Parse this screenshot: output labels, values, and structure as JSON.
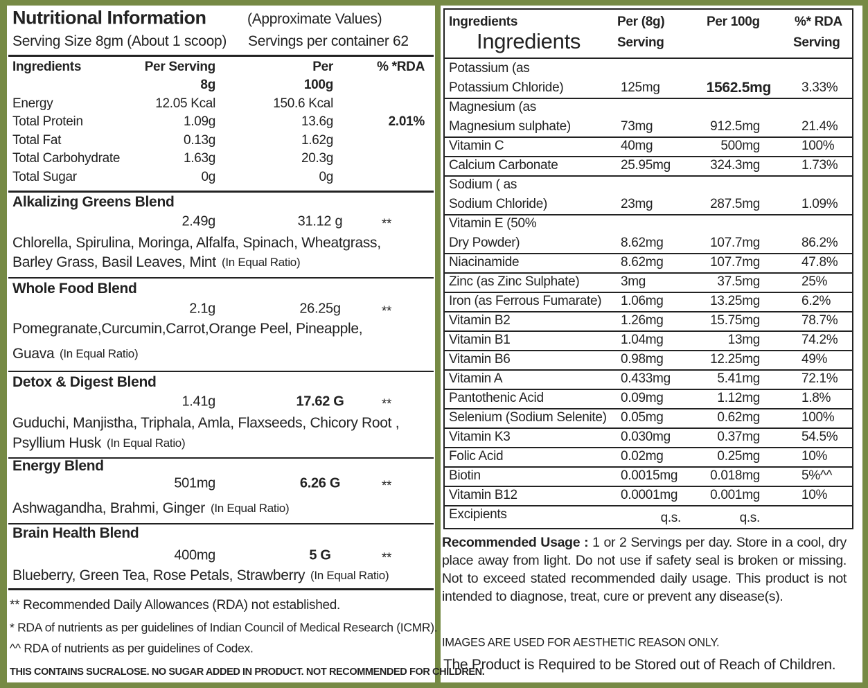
{
  "left": {
    "title": "Nutritional Information",
    "title_note": "(Approximate Values)",
    "serving_size": "Serving Size 8gm (About 1 scoop)",
    "servings_per_container": "Servings per container 62",
    "header": {
      "ingredients": "Ingredients",
      "per_serving": [
        "Per Serving",
        "8g"
      ],
      "per_100g": [
        "Per",
        "100g"
      ],
      "rda": "% *RDA"
    },
    "nutrients": [
      [
        "Energy",
        "12.05 Kcal",
        "150.6 Kcal",
        null
      ],
      [
        "Total Protein",
        "1.09g",
        "13.6g",
        "2.01%"
      ],
      [
        "Total Fat",
        "0.13g",
        "1.62g",
        null
      ],
      [
        "Total Carbohydrate",
        "1.63g",
        "20.3g",
        null
      ],
      [
        "Total Sugar",
        "0g",
        "0g",
        null
      ]
    ],
    "blends": [
      {
        "name": "Alkalizing Greens Blend",
        "per_serving": "2.49g",
        "per_100g": "31.12 g",
        "rda": "**",
        "lines": [
          "Chlorella, Spirulina, Moringa, Alfalfa, Spinach, Wheatgrass,",
          "Barley  Grass, Basil Leaves, Mint"
        ],
        "note": "(In Equal Ratio)"
      },
      {
        "name": "Whole Food Blend",
        "per_serving": "2.1g",
        "per_100g": "26.25g",
        "rda": "**",
        "lines": [
          "Pomegranate,Curcumin,Carrot,Orange Peel, Pineapple,",
          "Guava"
        ],
        "note": "(In Equal Ratio)"
      },
      {
        "name": "Detox & Digest Blend",
        "per_serving": "1.41g",
        "per_100g": "17.62 G",
        "rda": "**",
        "lines": [
          "Guduchi, Manjistha, Triphala, Amla, Flaxseeds, Chicory Root ,",
          "Psyllium Husk"
        ],
        "note": "(In Equal Ratio)"
      },
      {
        "name": "Energy Blend",
        "per_serving": "501mg",
        "per_100g": "6.26 G",
        "rda": "**",
        "lines": [
          "Ashwagandha, Brahmi, Ginger"
        ],
        "note": "(In Equal Ratio)"
      },
      {
        "name": "Brain Health Blend",
        "per_serving": "400mg",
        "per_100g": "5 G",
        "rda": "**",
        "lines": [
          "Blueberry, Green Tea, Rose Petals, Strawberry"
        ],
        "note": "(In Equal Ratio)"
      }
    ],
    "footnotes": [
      "** Recommended Daily Allowances (RDA) not established.",
      "* RDA of nutrients as per guidelines of Indian Council of Medical Research (ICMR).",
      "^^ RDA of nutrients as per guidelines of Codex."
    ],
    "warning": "THIS CONTAINS SUCRALOSE. NO SUGAR ADDED IN PRODUCT. NOT RECOMMENDED FOR CHILDREN."
  },
  "right": {
    "header": {
      "ingredients": "Ingredients",
      "ingredients_large": "Ingredients",
      "per_serving": [
        "Per (8g)",
        "Serving"
      ],
      "per_100g": "Per 100g",
      "rda": [
        "%* RDA",
        "Serving"
      ]
    },
    "rows": [
      [
        [
          "Potassium (as",
          "Potassium Chloride)"
        ],
        "125mg",
        "1562.5mg",
        "3.33%"
      ],
      [
        [
          "Magnesium (as",
          "Magnesium sulphate)"
        ],
        "73mg",
        "912.5mg",
        "21.4%"
      ],
      [
        [
          "Vitamin C"
        ],
        "40mg",
        "500mg",
        "100%"
      ],
      [
        [
          "Calcium Carbonate"
        ],
        "25.95mg",
        "324.3mg",
        "1.73%"
      ],
      [
        [
          "Sodium ( as",
          "Sodium Chloride)"
        ],
        "23mg",
        "287.5mg",
        "1.09%"
      ],
      [
        [
          "Vitamin E (50%",
          "Dry Powder)"
        ],
        "8.62mg",
        "107.7mg",
        "86.2%"
      ],
      [
        [
          "Niacinamide"
        ],
        "8.62mg",
        "107.7mg",
        "47.8%"
      ],
      [
        [
          "Zinc (as Zinc Sulphate)"
        ],
        "3mg",
        "37.5mg",
        "25%"
      ],
      [
        [
          "Iron (as Ferrous Fumarate)"
        ],
        "1.06mg",
        "13.25mg",
        "6.2%"
      ],
      [
        [
          "Vitamin B2"
        ],
        "1.26mg",
        "15.75mg",
        "78.7%"
      ],
      [
        [
          "Vitamin B1"
        ],
        "1.04mg",
        "13mg",
        "74.2%"
      ],
      [
        [
          "Vitamin B6"
        ],
        "0.98mg",
        "12.25mg",
        "49%"
      ],
      [
        [
          "Vitamin A"
        ],
        "0.433mg",
        "5.41mg",
        "72.1%"
      ],
      [
        [
          "Pantothenic Acid"
        ],
        "0.09mg",
        "1.12mg",
        "1.8%"
      ],
      [
        [
          "Selenium (Sodium Selenite)"
        ],
        "0.05mg",
        "0.62mg",
        "100%"
      ],
      [
        [
          "Vitamin K3"
        ],
        "0.030mg",
        "0.37mg",
        "54.5%"
      ],
      [
        [
          "Folic Acid"
        ],
        "0.02mg",
        "0.25mg",
        "10%"
      ],
      [
        [
          "Biotin"
        ],
        "0.0015mg",
        "0.018mg",
        "5%^^"
      ],
      [
        [
          "Vitamin B12"
        ],
        "0.0001mg",
        "0.001mg",
        "10%"
      ],
      [
        [
          "Excipients"
        ],
        "q.s.",
        "q.s.",
        null
      ]
    ],
    "usage_label": "Recommended Usage :",
    "usage_text": "1 or 2 Servings per day. Store in a cool, dry place away from light. Do not use if safety seal is broken or missing. Not to exceed stated recommended daily usage. This product is not intended to diagnose, treat, cure or prevent any disease(s).",
    "notes": [
      "IMAGES ARE USED FOR AESTHETIC REASON ONLY.",
      "The Product is Required to be Stored out of Reach of Children."
    ]
  }
}
